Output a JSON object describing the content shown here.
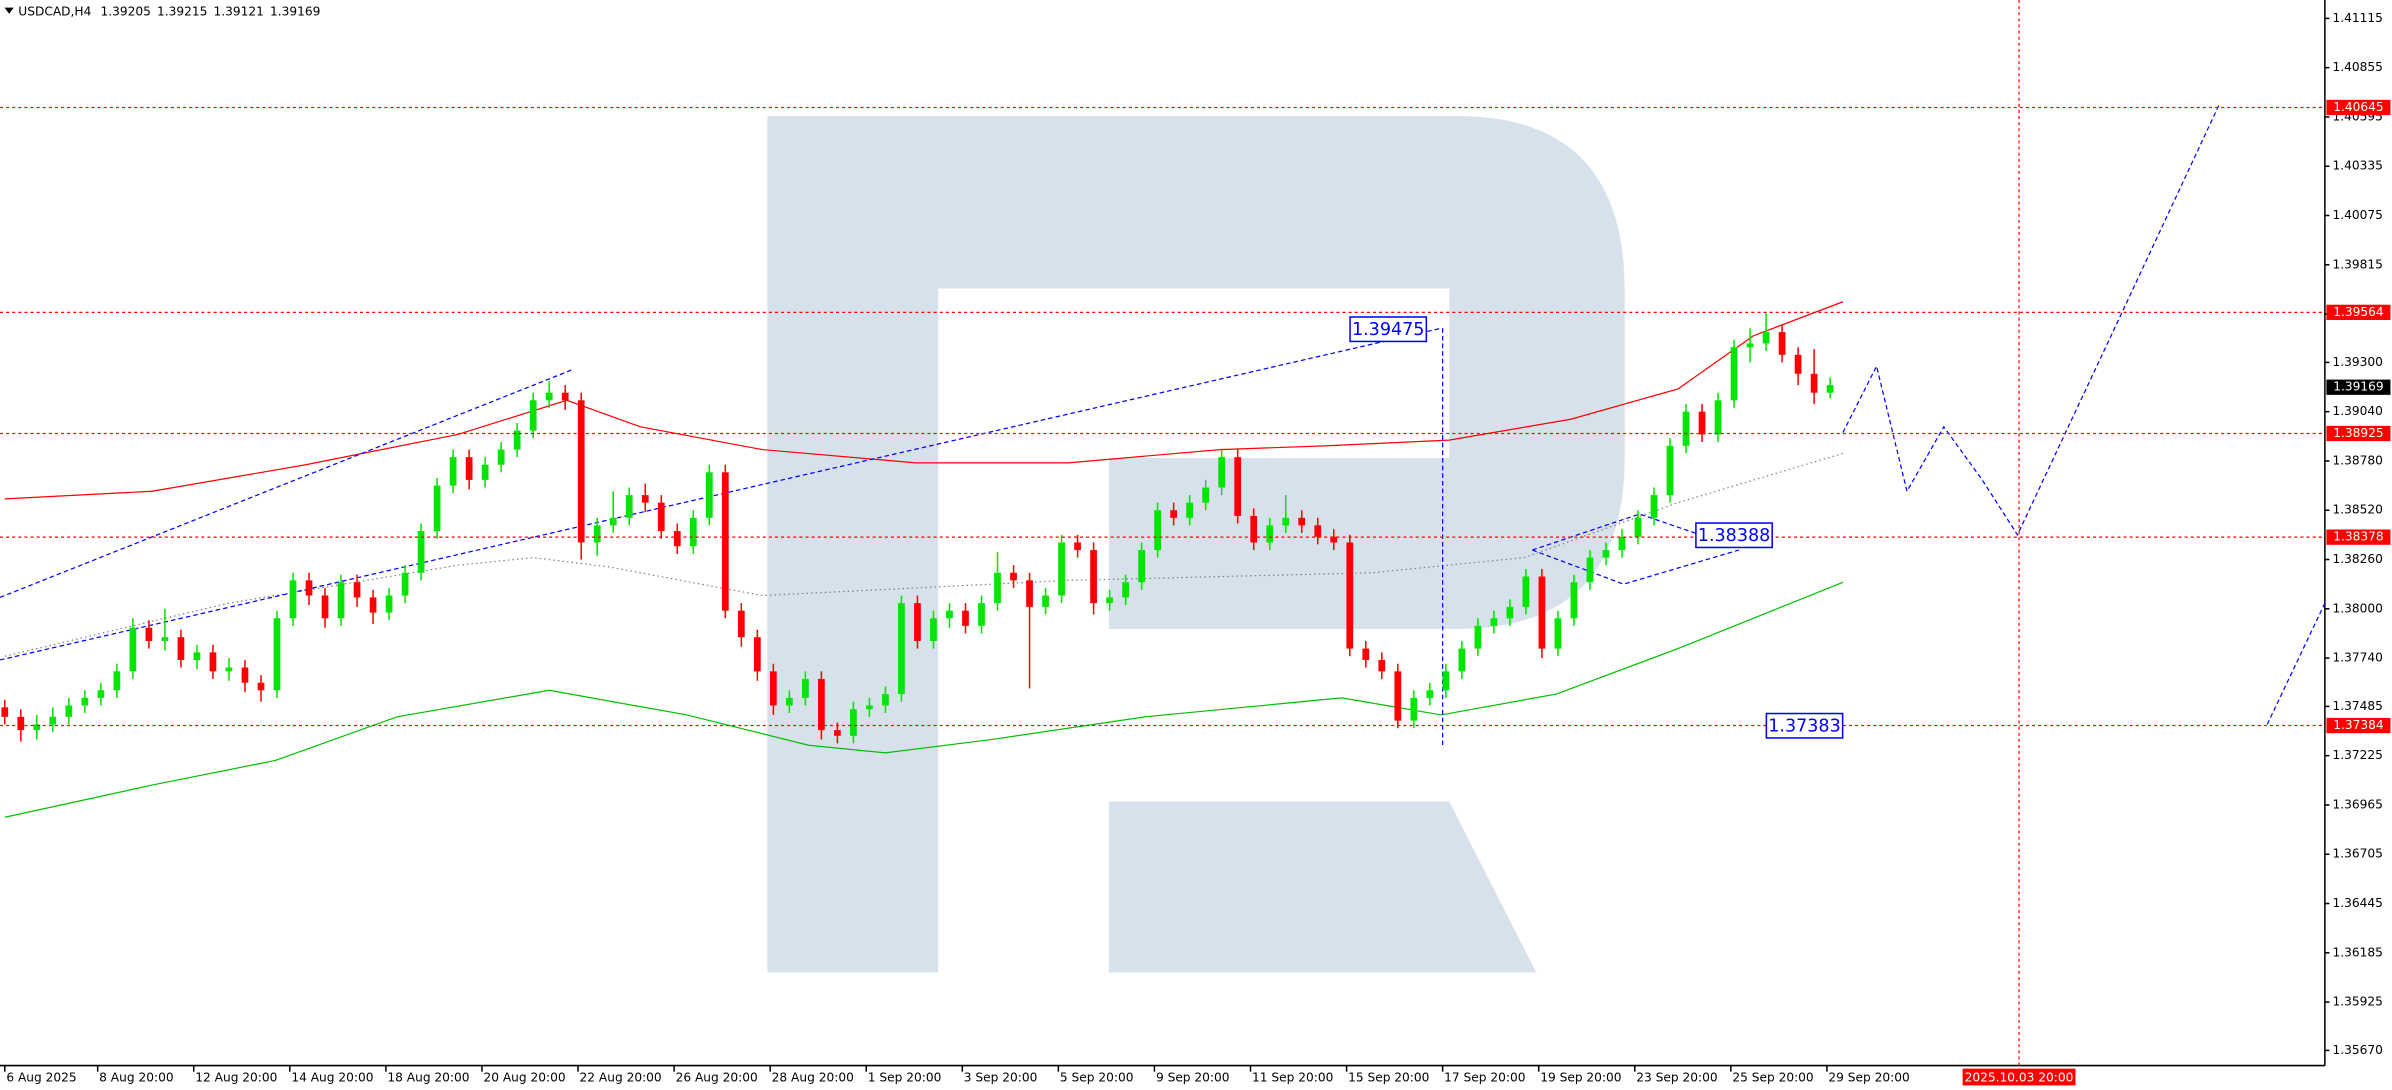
{
  "chart_data": {
    "type": "candlestick",
    "symbol": "USDCAD,H4",
    "header_values": [
      1.39205,
      1.39215,
      1.39121,
      1.39169
    ],
    "up_color": "#00e600",
    "down_color": "#ff0000",
    "x": [
      0,
      1,
      2,
      3,
      4,
      5,
      6,
      7,
      8,
      9,
      10,
      11,
      12,
      13,
      14,
      15,
      16,
      17,
      18,
      19,
      20,
      21,
      22,
      23,
      24,
      25,
      26,
      27,
      28,
      29,
      30,
      31,
      32,
      33,
      34,
      35,
      36,
      37,
      38,
      39,
      40,
      41,
      42,
      43,
      44,
      45,
      46,
      47,
      48,
      49,
      50,
      51,
      52,
      53,
      54,
      55,
      56,
      57,
      58,
      59,
      60,
      61,
      62,
      63,
      64,
      65,
      66,
      67,
      68,
      69,
      70,
      71,
      72,
      73,
      74,
      75,
      76,
      77,
      78,
      79,
      80,
      81,
      82,
      83,
      84,
      85,
      86,
      87,
      88,
      89,
      90,
      91,
      92,
      93,
      94,
      95,
      96,
      97,
      98,
      99,
      100,
      101,
      102,
      103,
      104,
      105,
      106,
      107,
      108,
      109,
      110,
      111,
      112,
      113,
      114
    ],
    "open": [
      1.3748,
      1.3743,
      1.3736,
      1.3739,
      1.3743,
      1.3749,
      1.3753,
      1.3757,
      1.3767,
      1.379,
      1.3783,
      1.3785,
      1.3773,
      1.3777,
      1.3767,
      1.3769,
      1.3761,
      1.3757,
      1.3795,
      1.3815,
      1.3807,
      1.3795,
      1.3814,
      1.3806,
      1.3798,
      1.3807,
      1.3819,
      1.3841,
      1.3865,
      1.388,
      1.3868,
      1.3876,
      1.3884,
      1.3894,
      1.391,
      1.3914,
      1.391,
      1.3835,
      1.3844,
      1.3848,
      1.386,
      1.3856,
      1.3841,
      1.3833,
      1.3848,
      1.3872,
      1.3799,
      1.3785,
      1.3767,
      1.3749,
      1.3753,
      1.3763,
      1.3736,
      1.3733,
      1.3747,
      1.3749,
      1.3755,
      1.3803,
      1.3783,
      1.3795,
      1.3799,
      1.3791,
      1.3803,
      1.3819,
      1.3815,
      1.3801,
      1.3807,
      1.3835,
      1.3831,
      1.3803,
      1.3806,
      1.3814,
      1.3831,
      1.3852,
      1.3848,
      1.3856,
      1.3864,
      1.388,
      1.3849,
      1.3835,
      1.3844,
      1.3848,
      1.3844,
      1.3838,
      1.3835,
      1.3779,
      1.3773,
      1.3767,
      1.3741,
      1.3753,
      1.3757,
      1.3767,
      1.3779,
      1.3791,
      1.3795,
      1.3801,
      1.3817,
      1.3779,
      1.3795,
      1.3814,
      1.3827,
      1.3831,
      1.3838,
      1.3848,
      1.386,
      1.3886,
      1.3904,
      1.3892,
      1.391,
      1.3938,
      1.394,
      1.3946,
      1.3934,
      1.3924,
      1.3914
    ],
    "high": [
      1.3752,
      1.3747,
      1.3744,
      1.3748,
      1.3753,
      1.3757,
      1.3761,
      1.3771,
      1.3795,
      1.3794,
      1.38,
      1.3789,
      1.3781,
      1.3781,
      1.3774,
      1.3773,
      1.3765,
      1.3799,
      1.3819,
      1.3819,
      1.3811,
      1.3818,
      1.3818,
      1.381,
      1.3811,
      1.3823,
      1.3845,
      1.3869,
      1.3884,
      1.3884,
      1.388,
      1.3888,
      1.3898,
      1.3914,
      1.392,
      1.3918,
      1.3914,
      1.3848,
      1.3862,
      1.3864,
      1.3866,
      1.386,
      1.3845,
      1.3852,
      1.3876,
      1.3876,
      1.3803,
      1.3789,
      1.3771,
      1.3757,
      1.3767,
      1.3767,
      1.374,
      1.3751,
      1.3753,
      1.3759,
      1.3807,
      1.3807,
      1.3799,
      1.3803,
      1.3803,
      1.3807,
      1.383,
      1.3823,
      1.3819,
      1.3811,
      1.3839,
      1.3839,
      1.3835,
      1.381,
      1.3818,
      1.3835,
      1.3856,
      1.3856,
      1.386,
      1.3868,
      1.3884,
      1.3884,
      1.3853,
      1.3848,
      1.386,
      1.3852,
      1.3848,
      1.3842,
      1.3839,
      1.3783,
      1.3777,
      1.3771,
      1.3757,
      1.3761,
      1.3771,
      1.3783,
      1.3795,
      1.3799,
      1.3805,
      1.3821,
      1.3821,
      1.3799,
      1.3818,
      1.3831,
      1.3835,
      1.3842,
      1.3852,
      1.3864,
      1.389,
      1.3908,
      1.3908,
      1.3914,
      1.3942,
      1.3948,
      1.3956,
      1.395,
      1.3938,
      1.3937,
      1.3922
    ],
    "low": [
      1.3739,
      1.373,
      1.3731,
      1.3735,
      1.3739,
      1.3745,
      1.3749,
      1.3753,
      1.3763,
      1.3779,
      1.3778,
      1.3769,
      1.3768,
      1.3763,
      1.3762,
      1.3756,
      1.3751,
      1.3753,
      1.3791,
      1.3802,
      1.379,
      1.3791,
      1.3801,
      1.3792,
      1.3794,
      1.3803,
      1.3815,
      1.3837,
      1.3861,
      1.3863,
      1.3864,
      1.3872,
      1.388,
      1.389,
      1.3906,
      1.3905,
      1.3826,
      1.3828,
      1.384,
      1.3844,
      1.3851,
      1.3837,
      1.3829,
      1.3829,
      1.3844,
      1.3795,
      1.378,
      1.3762,
      1.3744,
      1.3745,
      1.3749,
      1.3731,
      1.3729,
      1.3729,
      1.3743,
      1.3745,
      1.3751,
      1.3779,
      1.3779,
      1.379,
      1.3787,
      1.3787,
      1.3799,
      1.3811,
      1.3758,
      1.3797,
      1.3803,
      1.3827,
      1.3797,
      1.3799,
      1.3802,
      1.381,
      1.3827,
      1.3844,
      1.3844,
      1.3852,
      1.386,
      1.3845,
      1.3831,
      1.3831,
      1.384,
      1.384,
      1.3834,
      1.3831,
      1.3775,
      1.3769,
      1.3763,
      1.3737,
      1.3737,
      1.3749,
      1.3753,
      1.3763,
      1.3775,
      1.3787,
      1.3791,
      1.3797,
      1.3774,
      1.3775,
      1.3791,
      1.381,
      1.3823,
      1.3827,
      1.3834,
      1.3844,
      1.3856,
      1.3882,
      1.3888,
      1.3888,
      1.3906,
      1.393,
      1.3936,
      1.393,
      1.3918,
      1.3908,
      1.3911
    ],
    "close": [
      1.3743,
      1.3736,
      1.3739,
      1.3743,
      1.3749,
      1.3753,
      1.3757,
      1.3767,
      1.379,
      1.3783,
      1.3785,
      1.3773,
      1.3777,
      1.3767,
      1.3769,
      1.3761,
      1.3757,
      1.3795,
      1.3815,
      1.3807,
      1.3795,
      1.3814,
      1.3806,
      1.3798,
      1.3807,
      1.3819,
      1.3841,
      1.3865,
      1.388,
      1.3868,
      1.3876,
      1.3884,
      1.3894,
      1.391,
      1.3914,
      1.391,
      1.3835,
      1.3844,
      1.3848,
      1.386,
      1.3856,
      1.3841,
      1.3833,
      1.3848,
      1.3872,
      1.3799,
      1.3785,
      1.3767,
      1.3749,
      1.3753,
      1.3763,
      1.3736,
      1.3733,
      1.3747,
      1.3749,
      1.3755,
      1.3803,
      1.3783,
      1.3795,
      1.3799,
      1.3791,
      1.3803,
      1.3819,
      1.3815,
      1.3801,
      1.3807,
      1.3835,
      1.3831,
      1.3803,
      1.3806,
      1.3814,
      1.3831,
      1.3852,
      1.3848,
      1.3856,
      1.3864,
      1.388,
      1.3849,
      1.3835,
      1.3844,
      1.3848,
      1.3844,
      1.3838,
      1.3835,
      1.3779,
      1.3773,
      1.3767,
      1.3741,
      1.3753,
      1.3757,
      1.3767,
      1.3779,
      1.3791,
      1.3795,
      1.3801,
      1.3817,
      1.3779,
      1.3795,
      1.3814,
      1.3827,
      1.3831,
      1.3838,
      1.3848,
      1.386,
      1.3886,
      1.3904,
      1.3892,
      1.391,
      1.3938,
      1.394,
      1.3946,
      1.3934,
      1.3924,
      1.3914,
      1.3918
    ],
    "overlays": [
      {
        "color": "#ff0000",
        "style": "solid",
        "x": [
          0,
          9.2,
          18.8,
          28.3,
          35.1,
          39.7,
          47.3,
          56.9,
          66.4,
          75.9,
          82.6,
          90.2,
          97.8,
          104.5,
          109.2,
          114.8
        ],
        "values": [
          1.3858,
          1.3862,
          1.3876,
          1.3892,
          1.391,
          1.3896,
          1.3884,
          1.3877,
          1.3877,
          1.3884,
          1.3886,
          1.3889,
          1.39,
          1.3916,
          1.3944,
          1.3962
        ]
      },
      {
        "color": "#00c000",
        "style": "solid",
        "x": [
          0,
          9.2,
          16.9,
          24.5,
          34,
          42.6,
          50.2,
          55,
          61.6,
          71.2,
          83.5,
          89.7,
          96.9,
          104.5,
          114.8
        ],
        "values": [
          1.369,
          1.3707,
          1.372,
          1.3743,
          1.3757,
          1.3744,
          1.3728,
          1.3724,
          1.3731,
          1.3743,
          1.3753,
          1.3744,
          1.3755,
          1.3779,
          1.3814
        ]
      },
      {
        "color": "#808080",
        "style": "dotted",
        "x": [
          0,
          14,
          28.3,
          33,
          37.8,
          47.3,
          56.9,
          66.4,
          75.9,
          85.4,
          94.9,
          104.5,
          114.8
        ],
        "values": [
          1.3775,
          1.3803,
          1.3823,
          1.3827,
          1.3822,
          1.3807,
          1.3811,
          1.3815,
          1.3817,
          1.3819,
          1.3827,
          1.3856,
          1.3882
        ]
      },
      {
        "color": "#0000ff",
        "style": "dashed",
        "x": [
          -0.3,
          35.4
        ],
        "values": [
          1.3806,
          1.3926
        ]
      },
      {
        "color": "#0000ff",
        "style": "dashed",
        "x": [
          -0.3,
          89.7
        ],
        "values": [
          1.3773,
          1.3948
        ]
      },
      {
        "color": "#0000ff",
        "style": "dashed",
        "x": [
          89.8,
          89.8
        ],
        "values": [
          1.3948,
          1.3727
        ]
      },
      {
        "color": "#0000ff",
        "style": "dashed",
        "x": [
          95.4,
          102.1,
          105.9
        ],
        "values": [
          1.3831,
          1.385,
          1.3839
        ]
      },
      {
        "color": "#0000ff",
        "style": "dashed",
        "x": [
          95.4,
          101.1,
          108.3
        ],
        "values": [
          1.3831,
          1.3813,
          1.3831
        ]
      },
      {
        "color": "#0000ff",
        "style": "dashed",
        "x": [
          114.8,
          116.9,
          118.8,
          121.1,
          123.5,
          125.7,
          132.1,
          138.3
        ],
        "values": [
          1.3893,
          1.3928,
          1.3862,
          1.3896,
          1.3868,
          1.3839,
          1.3954,
          1.4066
        ]
      },
      {
        "color": "#0000ff",
        "style": "dashed",
        "x": [
          141.3,
          144.9
        ],
        "values": [
          1.3739,
          1.3803
        ]
      }
    ],
    "levels": [
      {
        "value": 1.40645,
        "color": "#ff0000"
      },
      {
        "value": 1.39564,
        "color": "#ff0000"
      },
      {
        "value": 1.38925,
        "color": "#ff0000"
      },
      {
        "value": 1.38378,
        "color": "#ff0000"
      },
      {
        "value": 1.37384,
        "color": "#ff0000"
      }
    ],
    "current_price": {
      "value": 1.39169,
      "color": "#000000"
    },
    "annotations": [
      {
        "x": 86.4,
        "value": 1.39475,
        "color": "#0000ff"
      },
      {
        "x": 108,
        "value": 1.38388,
        "color": "#0000ff"
      },
      {
        "x": 112.4,
        "value": 1.37383,
        "color": "#0000ff"
      }
    ],
    "marker": {
      "value": 125.8,
      "label": "2025.10.03 20:00",
      "color": "#ff0000"
    },
    "xlim": [
      -0.3,
      144.9
    ],
    "ylim": [
      1.3559,
      1.41212
    ],
    "xticks": [
      {
        "value": 0,
        "label": "6 Aug 2025"
      },
      {
        "value": 5.8,
        "label": "8 Aug 20:00"
      },
      {
        "value": 11.8,
        "label": "12 Aug 20:00"
      },
      {
        "value": 17.8,
        "label": "14 Aug 20:00"
      },
      {
        "value": 23.8,
        "label": "18 Aug 20:00"
      },
      {
        "value": 29.8,
        "label": "20 Aug 20:00"
      },
      {
        "value": 35.8,
        "label": "22 Aug 20:00"
      },
      {
        "value": 41.8,
        "label": "26 Aug 20:00"
      },
      {
        "value": 47.8,
        "label": "28 Aug 20:00"
      },
      {
        "value": 53.8,
        "label": "1 Sep 20:00"
      },
      {
        "value": 59.8,
        "label": "3 Sep 20:00"
      },
      {
        "value": 65.8,
        "label": "5 Sep 20:00"
      },
      {
        "value": 71.8,
        "label": "9 Sep 20:00"
      },
      {
        "value": 77.8,
        "label": "11 Sep 20:00"
      },
      {
        "value": 83.8,
        "label": "15 Sep 20:00"
      },
      {
        "value": 89.8,
        "label": "17 Sep 20:00"
      },
      {
        "value": 95.8,
        "label": "19 Sep 20:00"
      },
      {
        "value": 101.8,
        "label": "23 Sep 20:00"
      },
      {
        "value": 107.8,
        "label": "25 Sep 20:00"
      },
      {
        "value": 113.8,
        "label": "29 Sep 20:00"
      }
    ],
    "yticks": [
      1.41115,
      1.40855,
      1.40595,
      1.40335,
      1.40075,
      1.39815,
      1.39555,
      {
        "value": 1.393,
        "label": "1.39300"
      },
      {
        "value": 1.3904,
        "label": "1.39040"
      },
      {
        "value": 1.3878,
        "label": "1.38780"
      },
      {
        "value": 1.3852,
        "label": "1.38520"
      },
      {
        "value": 1.3826,
        "label": "1.38260"
      },
      {
        "value": 1.38,
        "label": "1.38000"
      },
      {
        "value": 1.3774,
        "label": "1.37740"
      },
      1.37485,
      1.37225,
      1.36965,
      1.36705,
      1.36445,
      1.36185,
      1.35925,
      {
        "value": 1.3567,
        "label": "1.35670"
      }
    ]
  }
}
